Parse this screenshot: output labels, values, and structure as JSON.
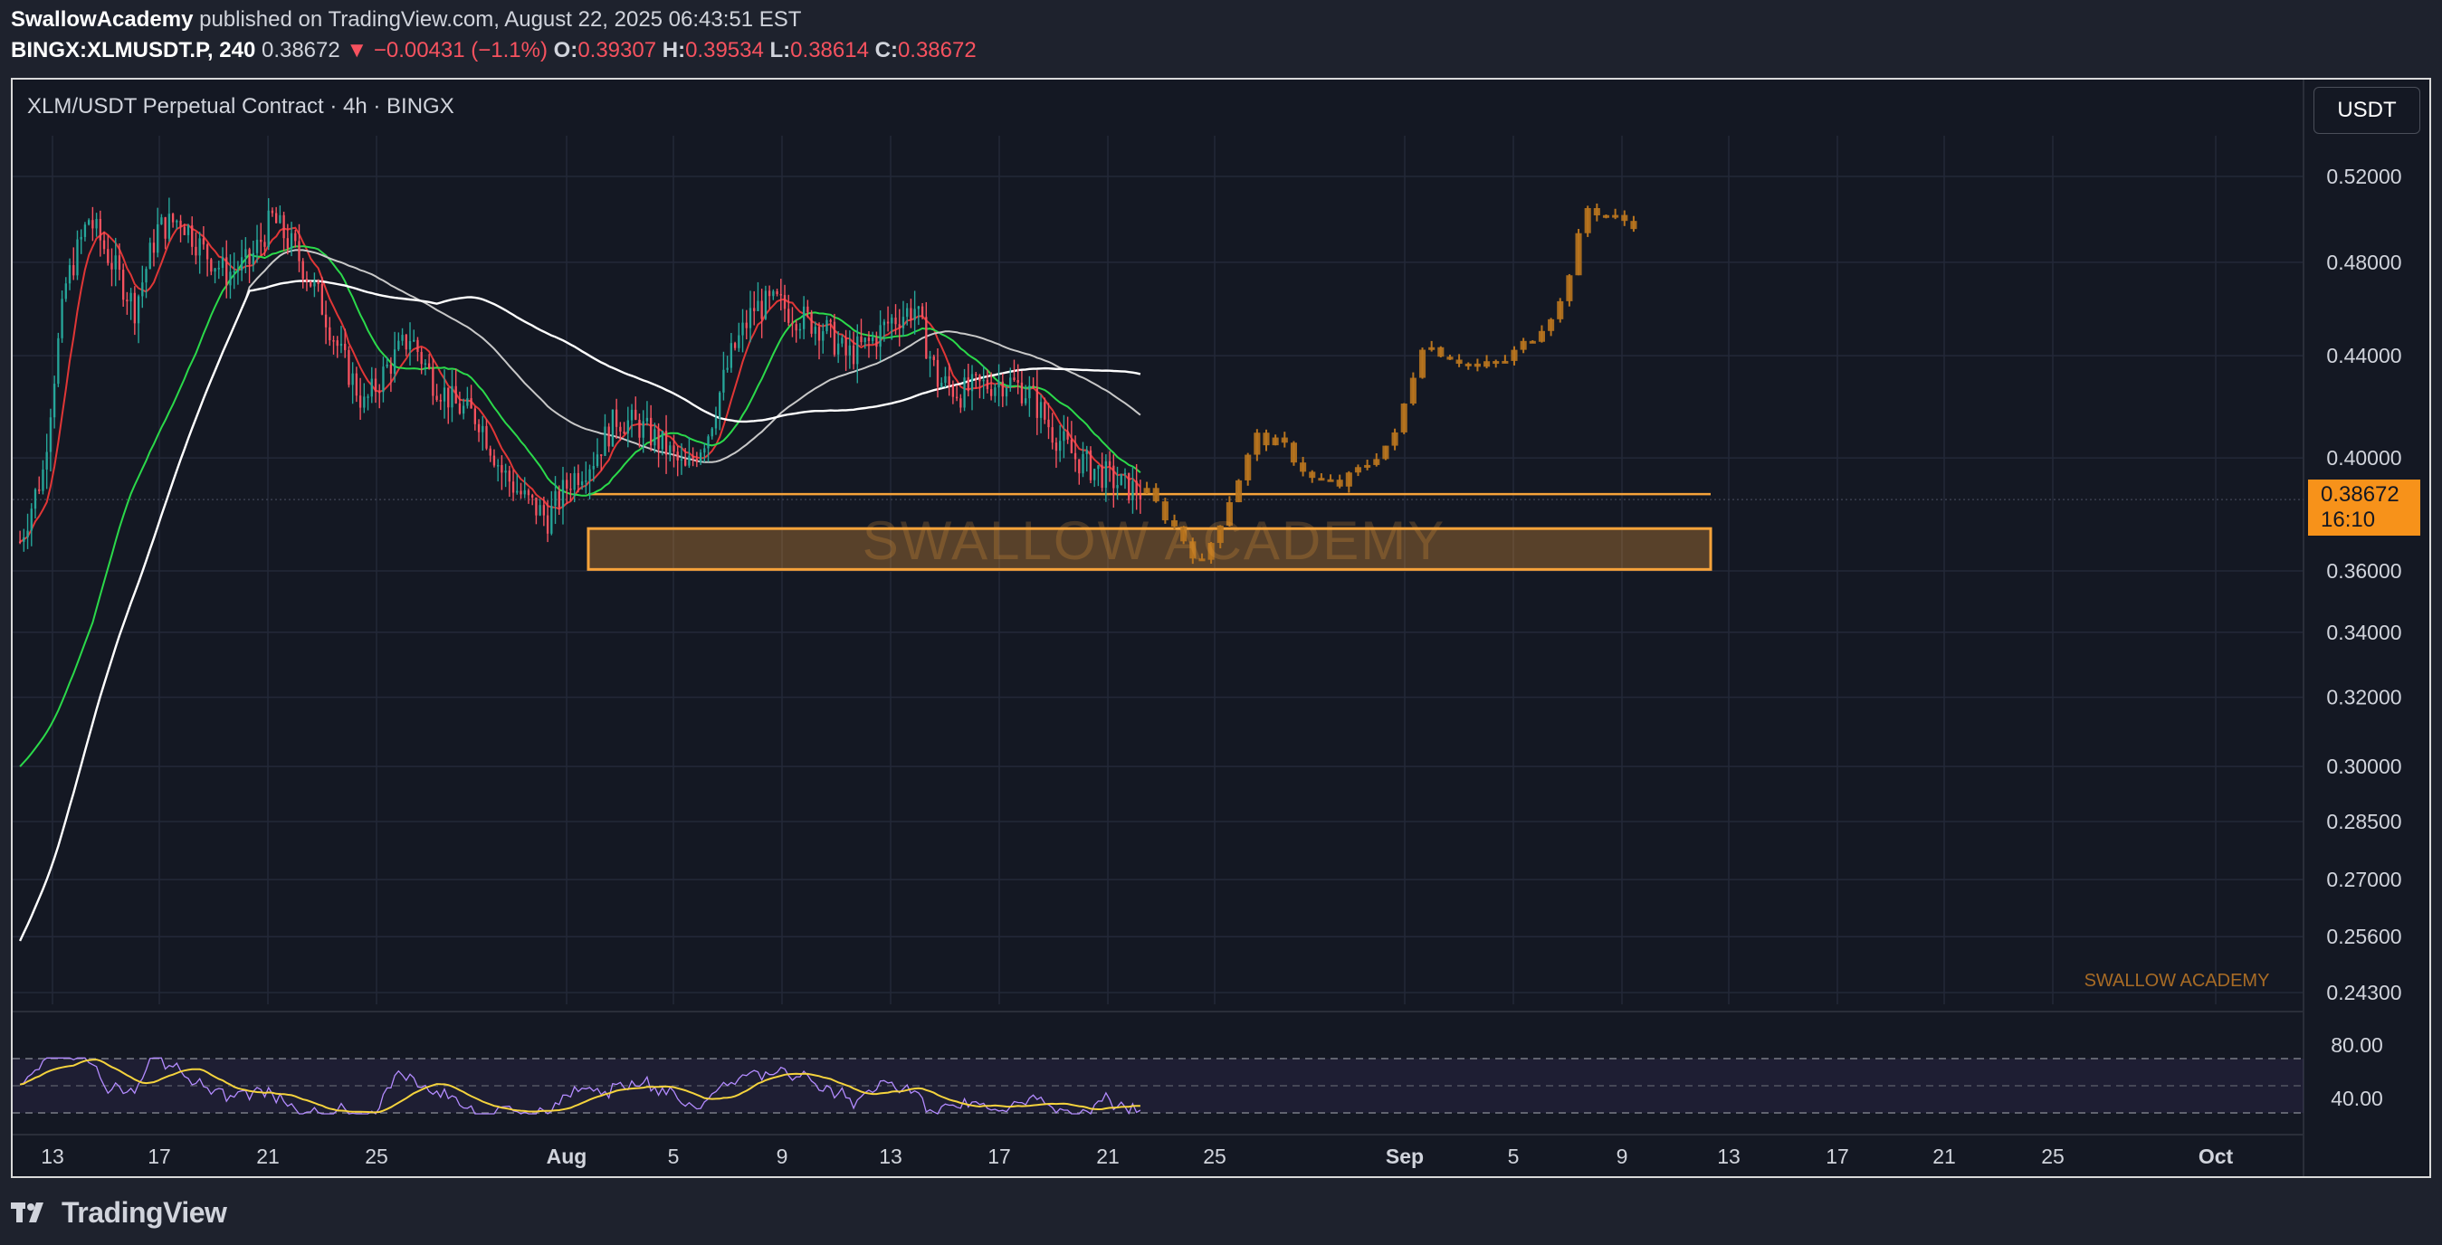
{
  "header": {
    "author": "SwallowAcademy",
    "published_text": "published on TradingView.com, August 22, 2025 06:43:51 EST",
    "symbol": "BINGX:XLMUSDT.P, 240",
    "last": "0.38672",
    "change": "▼ −0.00431 (−1.1%)",
    "o_label": "O:",
    "o_value": "0.39307",
    "h_label": "H:",
    "h_value": "0.39534",
    "l_label": "L:",
    "l_value": "0.38614",
    "c_label": "C:",
    "c_value": "0.38672"
  },
  "chart_title": "XLM/USDT Perpetual Contract · 4h · BINGX",
  "currency_button": "USDT",
  "price_tag": {
    "price": "0.38672",
    "countdown": "16:10"
  },
  "watermark": "SWALLOW ACADEMY",
  "footer_brand": "TradingView",
  "colors": {
    "up": "#26a69a",
    "down": "#f7525f",
    "projection": "#b8741e",
    "zone": "#f7a33a",
    "ma_fast": "#2bd94a",
    "ma_mid": "#e03636",
    "rsi": "#b38bff",
    "rsi_ma": "#f5d33d"
  },
  "chart_data": {
    "type": "candlestick",
    "y_ticks": [
      "0.52000",
      "0.48000",
      "0.44000",
      "0.40000",
      "0.36000",
      "0.34000",
      "0.32000",
      "0.30000",
      "0.28500",
      "0.27000",
      "0.25600",
      "0.24300"
    ],
    "x_ticks": [
      "13",
      "17",
      "21",
      "25",
      "Aug",
      "5",
      "9",
      "13",
      "17",
      "21",
      "25",
      "Sep",
      "5",
      "9",
      "13",
      "17",
      "21",
      "25",
      "Oct"
    ],
    "ohlc_closes_approx": [
      0.37,
      0.395,
      0.47,
      0.5,
      0.48,
      0.46,
      0.495,
      0.5,
      0.485,
      0.475,
      0.48,
      0.5,
      0.485,
      0.465,
      0.44,
      0.42,
      0.435,
      0.448,
      0.43,
      0.42,
      0.415,
      0.395,
      0.385,
      0.378,
      0.392,
      0.4,
      0.415,
      0.412,
      0.405,
      0.395,
      0.41,
      0.44,
      0.46,
      0.462,
      0.456,
      0.452,
      0.44,
      0.445,
      0.455,
      0.46,
      0.43,
      0.425,
      0.428,
      0.43,
      0.425,
      0.41,
      0.4,
      0.395,
      0.39,
      0.387
    ],
    "projection_path": [
      0.387,
      0.375,
      0.362,
      0.385,
      0.408,
      0.404,
      0.392,
      0.39,
      0.398,
      0.408,
      0.445,
      0.44,
      0.435,
      0.438,
      0.448,
      0.462,
      0.505,
      0.5,
      0.497
    ],
    "support_line": 0.3867,
    "demand_zone": [
      0.3605,
      0.3745
    ],
    "rsi": {
      "levels": [
        "80.00",
        "40.00"
      ]
    }
  }
}
